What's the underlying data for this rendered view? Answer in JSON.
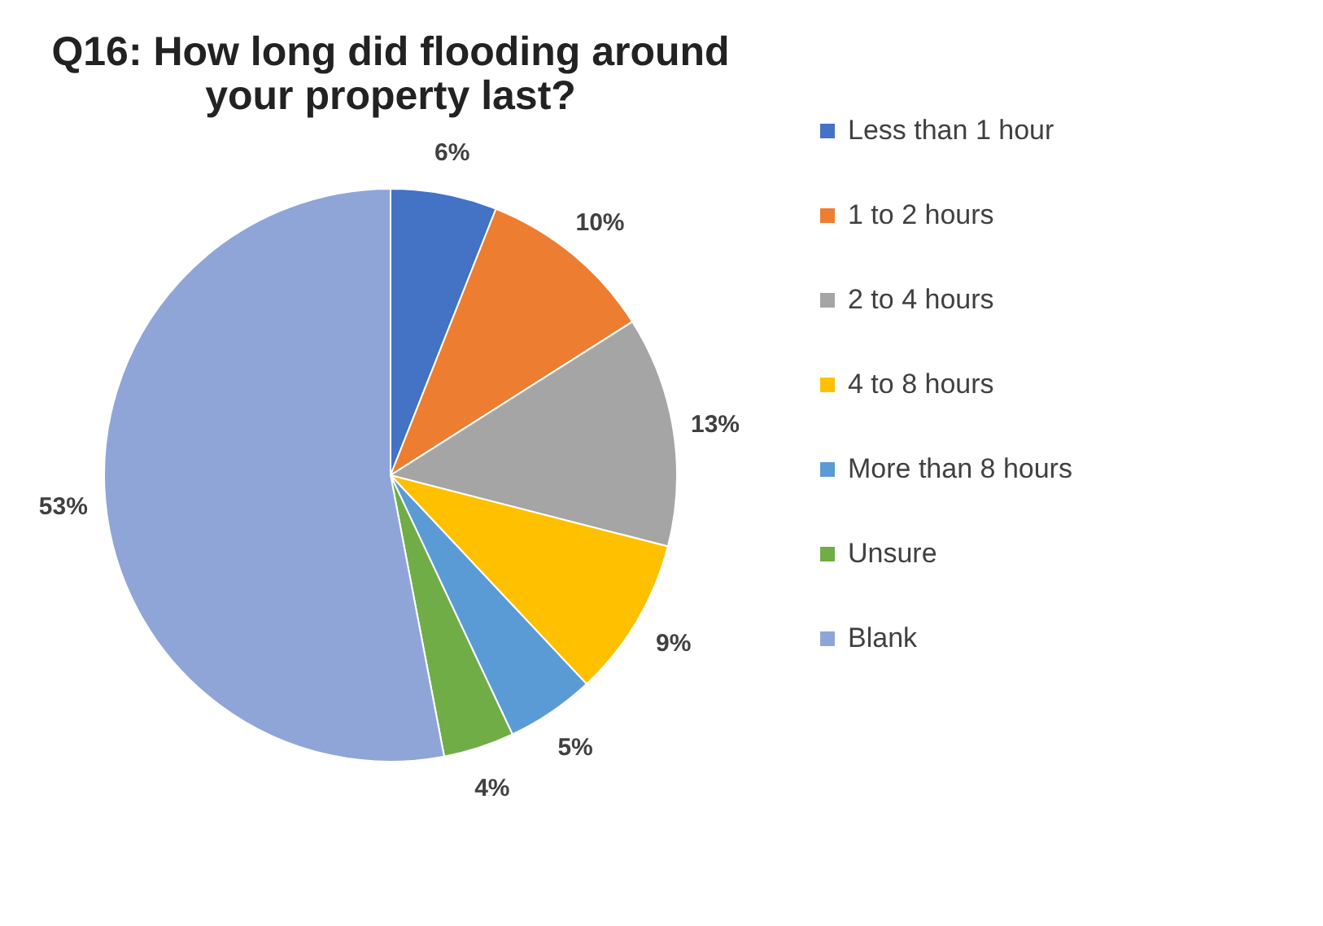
{
  "chart_data": {
    "type": "pie",
    "title": "Q16: How long did flooding around your property last?",
    "categories": [
      "Less than 1 hour",
      "1 to 2 hours",
      "2 to 4 hours",
      "4 to 8 hours",
      "More than 8 hours",
      "Unsure",
      "Blank"
    ],
    "values": [
      6,
      10,
      13,
      9,
      5,
      4,
      53
    ],
    "value_labels": [
      "6%",
      "10%",
      "13%",
      "9%",
      "5%",
      "4%",
      "53%"
    ],
    "colors": [
      "#4472c4",
      "#ed7d31",
      "#a5a5a5",
      "#ffc000",
      "#5b9bd5",
      "#70ad47",
      "#8fa5d8"
    ],
    "legend": "right"
  }
}
